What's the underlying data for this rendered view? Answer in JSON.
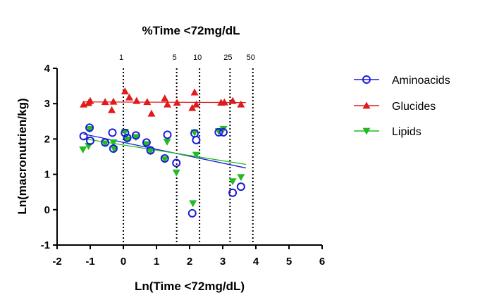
{
  "chart_data": {
    "type": "scatter",
    "title": "%Time <72mg/dL",
    "xlabel": "Ln(Time <72mg/dL)",
    "ylabel": "Ln(macronutrien/kg)",
    "xlim": [
      -2,
      6
    ],
    "ylim": [
      -1,
      4
    ],
    "x_ticks": [
      "-2",
      "-1",
      "0",
      "1",
      "2",
      "3",
      "4",
      "5",
      "6"
    ],
    "y_ticks": [
      "-1",
      "0",
      "1",
      "2",
      "3",
      "4"
    ],
    "grid": false,
    "legend_position": "right",
    "reference_lines": [
      {
        "label": "1",
        "x": 0.0
      },
      {
        "label": "5",
        "x": 1.61
      },
      {
        "label": "10",
        "x": 2.3
      },
      {
        "label": "25",
        "x": 3.22
      },
      {
        "label": "50",
        "x": 3.91
      }
    ],
    "series": [
      {
        "name": "Aminoacids",
        "marker": "circle",
        "color": "#1a1adb",
        "points": [
          [
            -1.2,
            2.08
          ],
          [
            -1.02,
            2.32
          ],
          [
            -1.0,
            1.95
          ],
          [
            -0.55,
            1.9
          ],
          [
            -0.33,
            2.18
          ],
          [
            -0.3,
            1.73
          ],
          [
            0.05,
            2.17
          ],
          [
            0.12,
            2.03
          ],
          [
            0.38,
            2.1
          ],
          [
            0.7,
            1.9
          ],
          [
            0.82,
            1.68
          ],
          [
            1.25,
            1.45
          ],
          [
            1.33,
            2.12
          ],
          [
            1.6,
            1.32
          ],
          [
            2.08,
            -0.1
          ],
          [
            2.15,
            2.16
          ],
          [
            2.2,
            1.97
          ],
          [
            2.88,
            2.19
          ],
          [
            3.02,
            2.19
          ],
          [
            3.3,
            0.48
          ],
          [
            3.55,
            0.65
          ]
        ],
        "trend": [
          [
            -1.2,
            2.14
          ],
          [
            3.7,
            1.18
          ]
        ]
      },
      {
        "name": "Glucides",
        "marker": "triangle-up",
        "color": "#e01b1b",
        "points": [
          [
            -1.2,
            2.98
          ],
          [
            -1.05,
            3.02
          ],
          [
            -1.0,
            3.08
          ],
          [
            -0.55,
            3.05
          ],
          [
            -0.35,
            2.82
          ],
          [
            -0.3,
            3.06
          ],
          [
            0.05,
            3.35
          ],
          [
            0.18,
            3.18
          ],
          [
            0.4,
            3.08
          ],
          [
            0.72,
            3.05
          ],
          [
            0.85,
            2.72
          ],
          [
            1.25,
            3.15
          ],
          [
            1.33,
            2.98
          ],
          [
            1.62,
            3.03
          ],
          [
            2.08,
            2.88
          ],
          [
            2.15,
            3.32
          ],
          [
            2.2,
            2.98
          ],
          [
            2.95,
            3.03
          ],
          [
            3.05,
            3.04
          ],
          [
            3.3,
            3.08
          ],
          [
            3.55,
            2.98
          ]
        ],
        "trend": [
          [
            -1.2,
            3.05
          ],
          [
            3.7,
            3.03
          ]
        ]
      },
      {
        "name": "Lipids",
        "marker": "triangle-down",
        "color": "#22bb22",
        "points": [
          [
            -1.22,
            1.7
          ],
          [
            -1.05,
            1.8
          ],
          [
            -1.02,
            2.28
          ],
          [
            -0.55,
            1.87
          ],
          [
            -0.3,
            1.9
          ],
          [
            -0.28,
            1.72
          ],
          [
            0.05,
            2.2
          ],
          [
            0.12,
            1.98
          ],
          [
            0.38,
            2.05
          ],
          [
            0.7,
            1.85
          ],
          [
            0.82,
            1.65
          ],
          [
            1.25,
            1.42
          ],
          [
            1.32,
            1.92
          ],
          [
            1.6,
            1.05
          ],
          [
            2.1,
            0.18
          ],
          [
            2.15,
            2.18
          ],
          [
            2.2,
            1.55
          ],
          [
            2.88,
            2.22
          ],
          [
            3.02,
            2.28
          ],
          [
            3.3,
            0.8
          ],
          [
            3.55,
            0.92
          ]
        ],
        "trend": [
          [
            -1.2,
            2.01
          ],
          [
            3.7,
            1.28
          ]
        ]
      }
    ]
  }
}
